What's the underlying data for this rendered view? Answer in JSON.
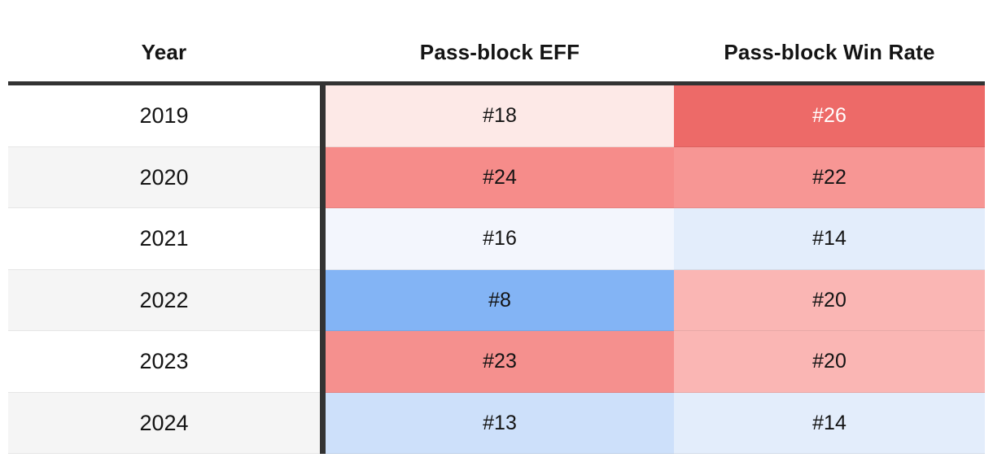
{
  "table": {
    "columns": [
      "Year",
      "Pass-block EFF",
      "Pass-block Win Rate"
    ],
    "rows": [
      {
        "year": "2019",
        "year_bg": "#ffffff",
        "eff": "#18",
        "eff_bg": "#fde9e7",
        "eff_fg": "#141414",
        "win": "#26",
        "win_bg": "#ed6a68",
        "win_fg": "#ffffff"
      },
      {
        "year": "2020",
        "year_bg": "#f5f5f5",
        "eff": "#24",
        "eff_bg": "#f68c8a",
        "eff_fg": "#141414",
        "win": "#22",
        "win_bg": "#f79694",
        "win_fg": "#141414"
      },
      {
        "year": "2021",
        "year_bg": "#ffffff",
        "eff": "#16",
        "eff_bg": "#f3f6fd",
        "eff_fg": "#141414",
        "win": "#14",
        "win_bg": "#e3edfb",
        "win_fg": "#141414"
      },
      {
        "year": "2022",
        "year_bg": "#f5f5f5",
        "eff": "#8",
        "eff_bg": "#83b4f5",
        "eff_fg": "#141414",
        "win": "#20",
        "win_bg": "#fab6b4",
        "win_fg": "#141414"
      },
      {
        "year": "2023",
        "year_bg": "#ffffff",
        "eff": "#23",
        "eff_bg": "#f5908e",
        "eff_fg": "#141414",
        "win": "#20",
        "win_bg": "#fab6b4",
        "win_fg": "#141414"
      },
      {
        "year": "2024",
        "year_bg": "#f5f5f5",
        "eff": "#13",
        "eff_bg": "#cde0fa",
        "eff_fg": "#141414",
        "win": "#14",
        "win_bg": "#e3edfb",
        "win_fg": "#141414"
      }
    ]
  },
  "colors": {
    "rule": "#333333",
    "divider": "#333333",
    "stripe": "#f5f5f5",
    "text": "#141414",
    "worst_red": "#ed6a68",
    "best_blue": "#83b4f5"
  },
  "chart_data": {
    "type": "table",
    "title": "",
    "columns": [
      "Year",
      "Pass-block EFF",
      "Pass-block Win Rate"
    ],
    "categories": [
      "2019",
      "2020",
      "2021",
      "2022",
      "2023",
      "2024"
    ],
    "series": [
      {
        "name": "Pass-block EFF",
        "values": [
          18,
          24,
          16,
          8,
          23,
          13
        ]
      },
      {
        "name": "Pass-block Win Rate",
        "values": [
          26,
          22,
          14,
          20,
          20,
          14
        ]
      }
    ],
    "value_format": "league rank prefixed with #",
    "color_encoding": "diverging heatmap: blue = better (lower rank number), red = worse (higher rank number)"
  }
}
